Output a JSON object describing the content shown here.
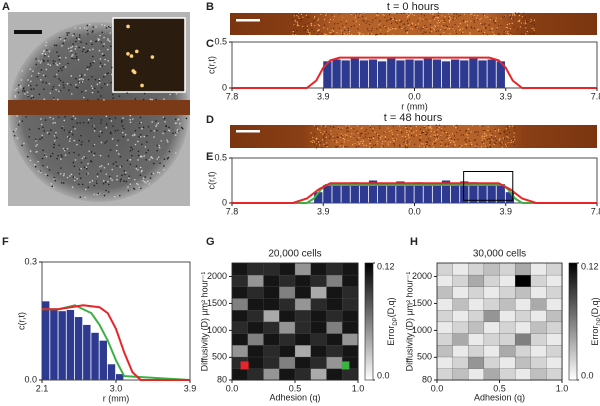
{
  "panel_labels": [
    "A",
    "B",
    "C",
    "D",
    "E",
    "F",
    "G",
    "H"
  ],
  "strips": [
    {
      "title": "t = 0 hours"
    },
    {
      "title": "t = 48 hours"
    }
  ],
  "chart_data": [
    {
      "type": "histogram",
      "ylabel": "c(r,t)",
      "xlabel": "r (mm)",
      "xlim": [
        -7.8,
        7.8
      ],
      "ylim": [
        0,
        0.5
      ],
      "xticks": [
        {
          "value": -7.8,
          "label": "7.8"
        },
        {
          "value": -3.9,
          "label": "3.9"
        },
        {
          "value": 0,
          "label": "0.0"
        },
        3.9,
        7.8
      ],
      "yticks": [
        0,
        0.5
      ],
      "color": "#2e3a8f",
      "bins": [
        -3.9,
        -3.51,
        -3.12,
        -2.73,
        -2.34,
        -1.95,
        -1.56,
        -1.17,
        -0.78,
        -0.39,
        0,
        0.39,
        0.78,
        1.17,
        1.56,
        1.95,
        2.34,
        2.73,
        3.12,
        3.51,
        3.9
      ],
      "values": [
        0.29,
        0.31,
        0.3,
        0.32,
        0.3,
        0.31,
        0.29,
        0.32,
        0.3,
        0.31,
        0.3,
        0.32,
        0.31,
        0.29,
        0.31,
        0.3,
        0.32,
        0.3,
        0.31,
        0.29
      ],
      "lines": [
        {
          "color": "#e8262a",
          "x": [
            -7.8,
            -4.6,
            -4.2,
            -3.9,
            -3.6,
            -3.2,
            3.2,
            3.6,
            3.9,
            4.2,
            4.6,
            7.8
          ],
          "values": [
            0,
            0,
            0.08,
            0.22,
            0.3,
            0.33,
            0.33,
            0.3,
            0.22,
            0.08,
            0,
            0
          ]
        }
      ]
    },
    {
      "type": "histogram",
      "ylabel": "c(r,t)",
      "xlim": [
        -7.8,
        7.8
      ],
      "ylim": [
        0,
        0.5
      ],
      "xticks": [
        {
          "value": -7.8,
          "label": "7.8"
        },
        {
          "value": -3.9,
          "label": "3.9"
        },
        {
          "value": 0,
          "label": "0.0"
        },
        3.9,
        7.8
      ],
      "yticks": [
        0,
        0.5
      ],
      "color": "#2e3a8f",
      "bins": [
        -4.29,
        -3.9,
        -3.51,
        -3.12,
        -2.73,
        -2.34,
        -1.95,
        -1.56,
        -1.17,
        -0.78,
        -0.39,
        0,
        0.39,
        0.78,
        1.17,
        1.56,
        1.95,
        2.34,
        2.73,
        3.12,
        3.51,
        3.9,
        4.29
      ],
      "values": [
        0.12,
        0.2,
        0.22,
        0.21,
        0.23,
        0.22,
        0.25,
        0.22,
        0.21,
        0.24,
        0.22,
        0.23,
        0.21,
        0.22,
        0.25,
        0.22,
        0.24,
        0.23,
        0.22,
        0.2,
        0.21,
        0.12
      ],
      "lines": [
        {
          "color": "#3cb043",
          "x": [
            -7.8,
            -4.6,
            -4.3,
            -4.0,
            -3.8,
            3.8,
            4.0,
            4.3,
            4.6,
            7.8
          ],
          "values": [
            0,
            0,
            0.05,
            0.15,
            0.2,
            0.2,
            0.15,
            0.05,
            0,
            0
          ]
        },
        {
          "color": "#e8262a",
          "x": [
            -7.8,
            -5.2,
            -4.6,
            -4.1,
            -3.6,
            3.6,
            4.1,
            4.6,
            5.2,
            7.8
          ],
          "values": [
            0,
            0,
            0.05,
            0.15,
            0.22,
            0.22,
            0.15,
            0.05,
            0,
            0
          ]
        }
      ],
      "zoom_box": {
        "x": [
          2.1,
          4.2
        ],
        "y": [
          0.03,
          0.35
        ]
      }
    },
    {
      "type": "histogram",
      "ylabel": "c(r,t)",
      "xlabel": "r (mm)",
      "xlim": [
        2.1,
        3.9
      ],
      "ylim": [
        0,
        0.3
      ],
      "xticks": [
        2.1,
        {
          "value": 3,
          "label": "3.0"
        },
        3.9
      ],
      "yticks": [
        {
          "value": 0,
          "label": "0.0"
        },
        0.3
      ],
      "color": "#2e3a8f",
      "bins": [
        2.1,
        2.2,
        2.3,
        2.4,
        2.5,
        2.6,
        2.7,
        2.8,
        2.9,
        3.0,
        3.1
      ],
      "values": [
        0.2,
        0.18,
        0.175,
        0.178,
        0.16,
        0.14,
        0.12,
        0.1,
        0.04,
        0.015
      ],
      "lines": [
        {
          "color": "#3cb043",
          "x": [
            2.1,
            2.3,
            2.5,
            2.7,
            2.8,
            2.9,
            3.0,
            3.1,
            3.9
          ],
          "values": [
            0.18,
            0.18,
            0.19,
            0.17,
            0.14,
            0.1,
            0.05,
            0.01,
            0
          ]
        },
        {
          "color": "#e8262a",
          "x": [
            2.1,
            2.3,
            2.6,
            2.8,
            2.9,
            3.0,
            3.1,
            3.2,
            3.3,
            3.9
          ],
          "values": [
            0.18,
            0.18,
            0.19,
            0.185,
            0.17,
            0.13,
            0.07,
            0.02,
            0,
            0
          ]
        }
      ]
    },
    {
      "type": "contour",
      "title": "20,000 cells",
      "xlabel": "Adhesion (q)",
      "ylabel": "Diffusivity (D) µm² hour⁻¹",
      "xlim": [
        0,
        1
      ],
      "ylim": [
        80,
        2250
      ],
      "xticks": [
        {
          "value": 0,
          "label": "0.0"
        },
        0.5,
        {
          "value": 1,
          "label": "1.0"
        }
      ],
      "yticks": [
        80,
        500,
        1000,
        1500,
        2000
      ],
      "colorbar": {
        "lim": [
          0,
          0.12
        ],
        "ticks": [
          {
            "value": 0,
            "label": "0.0"
          },
          0.12
        ],
        "label": [
          "Error",
          "DP",
          "(D,q)"
        ]
      },
      "z": [
        [
          0.11,
          0.1,
          0.05,
          0.11,
          0.1,
          0.04,
          0.11,
          0.1
        ],
        [
          0.1,
          0.11,
          0.1,
          0.06,
          0.11,
          0.1,
          0.05,
          0.11
        ],
        [
          0.05,
          0.11,
          0.1,
          0.11,
          0.04,
          0.11,
          0.1,
          0.11
        ],
        [
          0.11,
          0.06,
          0.11,
          0.1,
          0.11,
          0.1,
          0.11,
          0.05
        ],
        [
          0.1,
          0.11,
          0.1,
          0.05,
          0.1,
          0.11,
          0.06,
          0.11
        ],
        [
          0.11,
          0.1,
          0.04,
          0.11,
          0.1,
          0.11,
          0.1,
          0.11
        ],
        [
          0.06,
          0.11,
          0.11,
          0.1,
          0.05,
          0.1,
          0.11,
          0.1
        ],
        [
          0.11,
          0.1,
          0.11,
          0.06,
          0.11,
          0.04,
          0.11,
          0.1
        ],
        [
          0.1,
          0.05,
          0.11,
          0.1,
          0.11,
          0.1,
          0.06,
          0.11
        ],
        [
          0.11,
          0.1,
          0.1,
          0.11,
          0.05,
          0.11,
          0.1,
          0.11
        ]
      ],
      "points": [
        {
          "x": 0.1,
          "y": 350,
          "color": "#e8262a"
        },
        {
          "x": 0.9,
          "y": 350,
          "color": "#3cb043"
        }
      ]
    },
    {
      "type": "contour",
      "title": "30,000 cells",
      "xlabel": "Adhesion (q)",
      "ylabel": "Diffusivity (D) µm² hour⁻¹",
      "xlim": [
        0,
        1
      ],
      "ylim": [
        80,
        2250
      ],
      "xticks": [
        {
          "value": 0,
          "label": "0.0"
        },
        0.5,
        {
          "value": 1,
          "label": "1.0"
        }
      ],
      "yticks": [
        80,
        500,
        1000,
        1500,
        2000
      ],
      "colorbar": {
        "lim": [
          0,
          0.12
        ],
        "ticks": [
          {
            "value": 0,
            "label": "0.0"
          },
          0.12
        ],
        "label": [
          "Error",
          "DP",
          "(D,q)"
        ]
      },
      "z": [
        [
          0.02,
          0.03,
          0.01,
          0.04,
          0.02,
          0.01,
          0.03,
          0.02
        ],
        [
          0.01,
          0.02,
          0.05,
          0.02,
          0.01,
          0.03,
          0.02,
          0.01
        ],
        [
          0.03,
          0.01,
          0.02,
          0.01,
          0.04,
          0.02,
          0.01,
          0.02
        ],
        [
          0.02,
          0.04,
          0.01,
          0.02,
          0.02,
          0.06,
          0.02,
          0.01
        ],
        [
          0.01,
          0.02,
          0.03,
          0.01,
          0.02,
          0.01,
          0.03,
          0.02
        ],
        [
          0.02,
          0.01,
          0.02,
          0.05,
          0.01,
          0.02,
          0.01,
          0.03
        ],
        [
          0.01,
          0.03,
          0.01,
          0.02,
          0.03,
          0.01,
          0.04,
          0.01
        ],
        [
          0.03,
          0.01,
          0.02,
          0.01,
          0.02,
          0.03,
          0.01,
          0.02
        ],
        [
          0.01,
          0.02,
          0.04,
          0.02,
          0.01,
          0.12,
          0.02,
          0.01
        ],
        [
          0.02,
          0.01,
          0.02,
          0.03,
          0.02,
          0.04,
          0.01,
          0.02
        ]
      ],
      "points": []
    }
  ]
}
